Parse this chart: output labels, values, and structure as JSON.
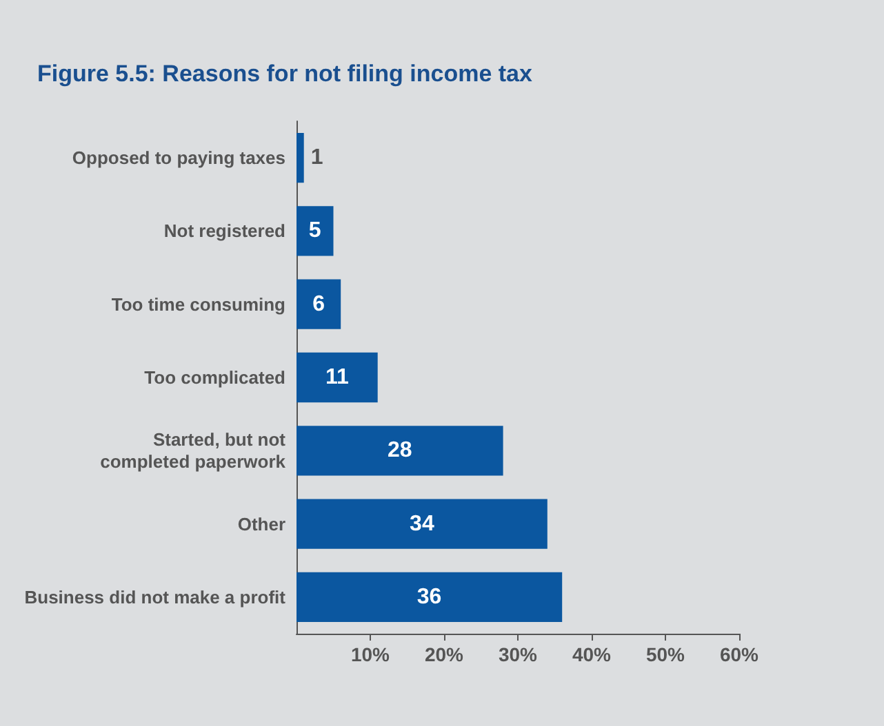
{
  "chart_data": {
    "type": "bar",
    "orientation": "horizontal",
    "title": "Figure 5.5: Reasons for not filing income tax",
    "categories": [
      "Opposed to paying taxes",
      "Not registered",
      "Too time consuming",
      "Too complicated",
      "Started, but not\ncompleted paperwork",
      "Other",
      "Business did not make a profit"
    ],
    "values": [
      1,
      5,
      6,
      11,
      28,
      34,
      36
    ],
    "color": "#0b57a0",
    "data_labels": true,
    "xlim": [
      0,
      60
    ],
    "xticks": [
      {
        "value": 10,
        "label": "10%"
      },
      {
        "value": 20,
        "label": "20%"
      },
      {
        "value": 30,
        "label": "30%"
      },
      {
        "value": 40,
        "label": "40%"
      },
      {
        "value": 50,
        "label": "50%"
      },
      {
        "value": 60,
        "label": "60%"
      }
    ]
  }
}
